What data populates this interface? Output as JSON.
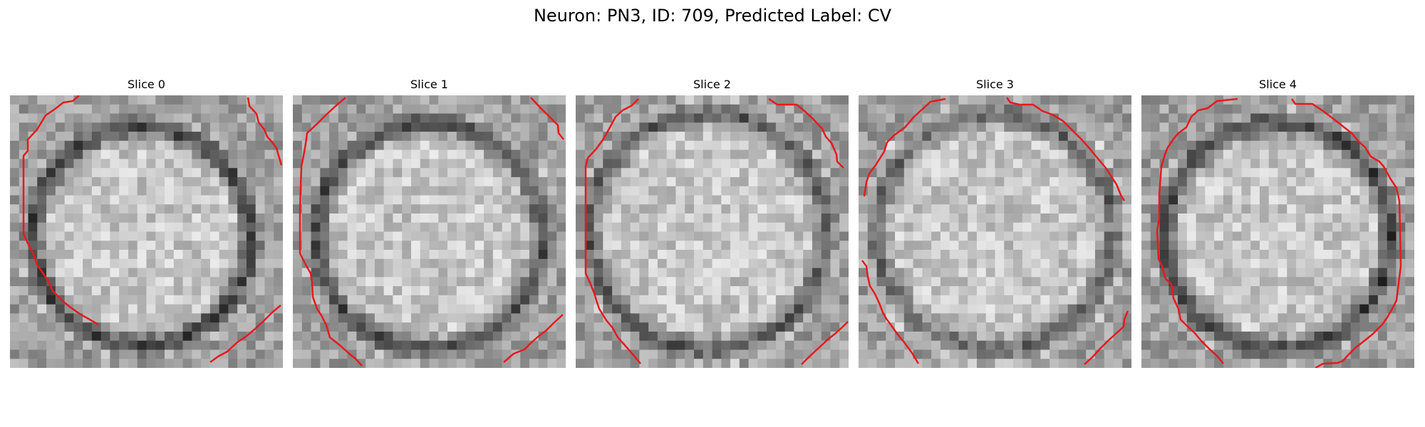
{
  "figure": {
    "title": "Neuron: PN3, ID: 709, Predicted Label: CV"
  },
  "colors": {
    "contour": "#e8191d",
    "colormap": "grayscale"
  },
  "panels": [
    {
      "title": "Slice 0"
    },
    {
      "title": "Slice 1"
    },
    {
      "title": "Slice 2"
    },
    {
      "title": "Slice 3"
    },
    {
      "title": "Slice 4"
    }
  ]
}
